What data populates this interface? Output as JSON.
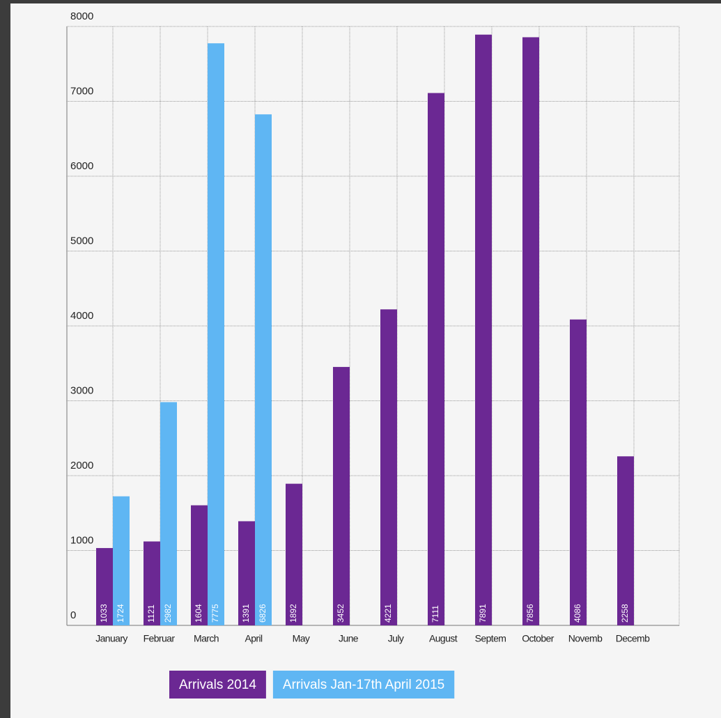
{
  "chart_data": {
    "type": "bar",
    "categories": [
      "January",
      "Februar",
      "March",
      "April",
      "May",
      "June",
      "July",
      "August",
      "Septem",
      "October",
      "Novemb",
      "Decemb"
    ],
    "series": [
      {
        "name": "Arrivals 2014",
        "color": "#6b2893",
        "values": [
          1033,
          1121,
          1604,
          1391,
          1892,
          3452,
          4221,
          7111,
          7891,
          7856,
          4086,
          2258
        ]
      },
      {
        "name": "Arrivals Jan-17th April 2015",
        "color": "#5fb6f3",
        "values": [
          1724,
          2982,
          7775,
          6826,
          null,
          null,
          null,
          null,
          null,
          null,
          null,
          null
        ]
      }
    ],
    "ylim": [
      0,
      8000
    ],
    "yticks": [
      0,
      1000,
      2000,
      3000,
      4000,
      5000,
      6000,
      7000,
      8000
    ],
    "grid": true,
    "legend": "bottom"
  }
}
